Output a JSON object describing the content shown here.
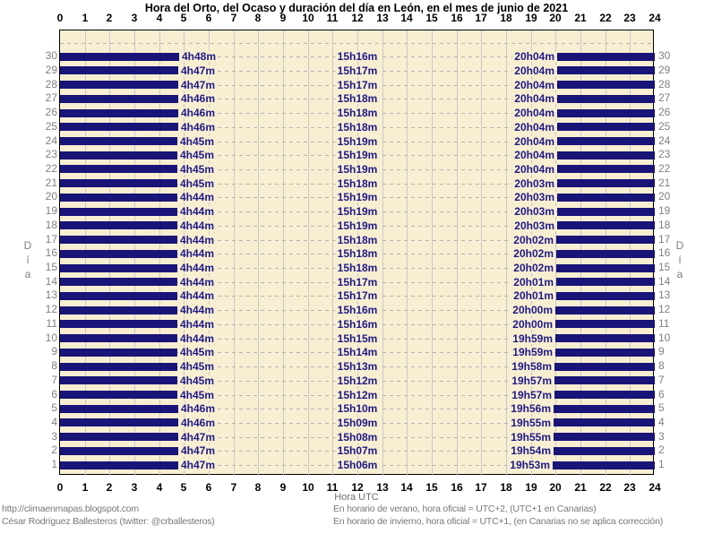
{
  "chart_data": {
    "type": "bar",
    "title": "Hora del Orto, del Ocaso y duración del día en León, en el mes de junio de 2021",
    "xlabel": "Hora UTC",
    "ylabel": "Día",
    "xlim": [
      0,
      24
    ],
    "x_ticks": [
      0,
      1,
      2,
      3,
      4,
      5,
      6,
      7,
      8,
      9,
      10,
      11,
      12,
      13,
      14,
      15,
      16,
      17,
      18,
      19,
      20,
      21,
      22,
      23,
      24
    ],
    "grid": "vertical solid per hour, horizontal dashed per day",
    "legend": "none",
    "rows": [
      {
        "day": 30,
        "sunrise": "4h48m",
        "daylength": "15h16m",
        "sunset": "20h04m"
      },
      {
        "day": 29,
        "sunrise": "4h47m",
        "daylength": "15h17m",
        "sunset": "20h04m"
      },
      {
        "day": 28,
        "sunrise": "4h47m",
        "daylength": "15h17m",
        "sunset": "20h04m"
      },
      {
        "day": 27,
        "sunrise": "4h46m",
        "daylength": "15h18m",
        "sunset": "20h04m"
      },
      {
        "day": 26,
        "sunrise": "4h46m",
        "daylength": "15h18m",
        "sunset": "20h04m"
      },
      {
        "day": 25,
        "sunrise": "4h46m",
        "daylength": "15h18m",
        "sunset": "20h04m"
      },
      {
        "day": 24,
        "sunrise": "4h45m",
        "daylength": "15h19m",
        "sunset": "20h04m"
      },
      {
        "day": 23,
        "sunrise": "4h45m",
        "daylength": "15h19m",
        "sunset": "20h04m"
      },
      {
        "day": 22,
        "sunrise": "4h45m",
        "daylength": "15h19m",
        "sunset": "20h04m"
      },
      {
        "day": 21,
        "sunrise": "4h45m",
        "daylength": "15h18m",
        "sunset": "20h03m"
      },
      {
        "day": 20,
        "sunrise": "4h44m",
        "daylength": "15h19m",
        "sunset": "20h03m"
      },
      {
        "day": 19,
        "sunrise": "4h44m",
        "daylength": "15h19m",
        "sunset": "20h03m"
      },
      {
        "day": 18,
        "sunrise": "4h44m",
        "daylength": "15h19m",
        "sunset": "20h03m"
      },
      {
        "day": 17,
        "sunrise": "4h44m",
        "daylength": "15h18m",
        "sunset": "20h02m"
      },
      {
        "day": 16,
        "sunrise": "4h44m",
        "daylength": "15h18m",
        "sunset": "20h02m"
      },
      {
        "day": 15,
        "sunrise": "4h44m",
        "daylength": "15h18m",
        "sunset": "20h02m"
      },
      {
        "day": 14,
        "sunrise": "4h44m",
        "daylength": "15h17m",
        "sunset": "20h01m"
      },
      {
        "day": 13,
        "sunrise": "4h44m",
        "daylength": "15h17m",
        "sunset": "20h01m"
      },
      {
        "day": 12,
        "sunrise": "4h44m",
        "daylength": "15h16m",
        "sunset": "20h00m"
      },
      {
        "day": 11,
        "sunrise": "4h44m",
        "daylength": "15h16m",
        "sunset": "20h00m"
      },
      {
        "day": 10,
        "sunrise": "4h44m",
        "daylength": "15h15m",
        "sunset": "19h59m"
      },
      {
        "day": 9,
        "sunrise": "4h45m",
        "daylength": "15h14m",
        "sunset": "19h59m"
      },
      {
        "day": 8,
        "sunrise": "4h45m",
        "daylength": "15h13m",
        "sunset": "19h58m"
      },
      {
        "day": 7,
        "sunrise": "4h45m",
        "daylength": "15h12m",
        "sunset": "19h57m"
      },
      {
        "day": 6,
        "sunrise": "4h45m",
        "daylength": "15h12m",
        "sunset": "19h57m"
      },
      {
        "day": 5,
        "sunrise": "4h46m",
        "daylength": "15h10m",
        "sunset": "19h56m"
      },
      {
        "day": 4,
        "sunrise": "4h46m",
        "daylength": "15h09m",
        "sunset": "19h55m"
      },
      {
        "day": 3,
        "sunrise": "4h47m",
        "daylength": "15h08m",
        "sunset": "19h55m"
      },
      {
        "day": 2,
        "sunrise": "4h47m",
        "daylength": "15h07m",
        "sunset": "19h54m"
      },
      {
        "day": 1,
        "sunrise": "4h47m",
        "daylength": "15h06m",
        "sunset": "19h53m"
      }
    ]
  },
  "footer": {
    "url": "http://climaenmapas.blogspot.com",
    "author": "César Rodríguez Ballesteros (twitter: @crballesteros)",
    "note_summer": "En horario de verano, hora oficial = UTC+2, (UTC+1 en Canarias)",
    "note_winter": "En horario de invierno, hora oficial = UTC+1, (en Canarias no se aplica corrección)"
  },
  "colors": {
    "plot_bg": "#F8EED2",
    "night_bar": "#191478",
    "time_label": "#1E1A86",
    "hour_grid": "#C9C9C9",
    "day_grid_dash": "#B4B4B4",
    "day_tick": "#808080",
    "footer_text": "#787878",
    "frame": "#000000"
  }
}
